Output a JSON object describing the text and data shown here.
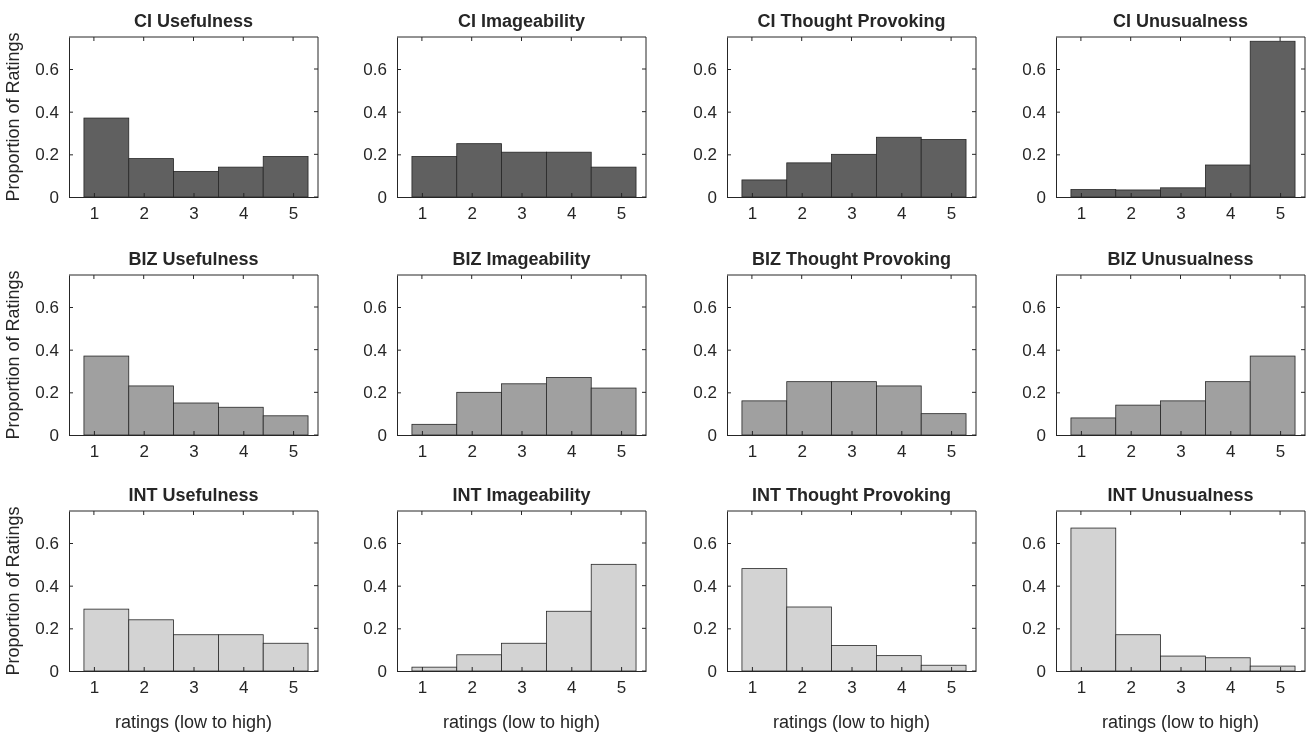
{
  "chart_data": [
    {
      "type": "histogram",
      "title": "CI Usefulness",
      "ylabel": "Proportion of Ratings",
      "bins": [
        0.8,
        1.7,
        2.6,
        3.5,
        4.4,
        5.3
      ],
      "values": [
        0.37,
        0.18,
        0.12,
        0.14,
        0.19
      ],
      "color": "#606060",
      "xlim": [
        0.5,
        5.5
      ],
      "xticks": [
        1,
        2,
        3,
        4,
        5
      ],
      "ylim": [
        0,
        0.75
      ],
      "yticks": [
        0,
        0.2,
        0.4,
        0.6
      ]
    },
    {
      "type": "histogram",
      "title": "CI Imageability",
      "bins": [
        0.8,
        1.7,
        2.6,
        3.5,
        4.4,
        5.3
      ],
      "values": [
        0.19,
        0.25,
        0.21,
        0.21,
        0.14
      ],
      "color": "#606060",
      "xlim": [
        0.5,
        5.5
      ],
      "xticks": [
        1,
        2,
        3,
        4,
        5
      ],
      "ylim": [
        0,
        0.75
      ],
      "yticks": [
        0,
        0.2,
        0.4,
        0.6
      ]
    },
    {
      "type": "histogram",
      "title": "CI Thought Provoking",
      "bins": [
        0.8,
        1.7,
        2.6,
        3.5,
        4.4,
        5.3
      ],
      "values": [
        0.08,
        0.16,
        0.2,
        0.28,
        0.27
      ],
      "color": "#606060",
      "xlim": [
        0.5,
        5.5
      ],
      "xticks": [
        1,
        2,
        3,
        4,
        5
      ],
      "ylim": [
        0,
        0.75
      ],
      "yticks": [
        0,
        0.2,
        0.4,
        0.6
      ]
    },
    {
      "type": "histogram",
      "title": "CI Unusualness",
      "bins": [
        0.8,
        1.7,
        2.6,
        3.5,
        4.4,
        5.3
      ],
      "values": [
        0.035,
        0.033,
        0.043,
        0.15,
        0.73
      ],
      "color": "#606060",
      "xlim": [
        0.5,
        5.5
      ],
      "xticks": [
        1,
        2,
        3,
        4,
        5
      ],
      "ylim": [
        0,
        0.75
      ],
      "yticks": [
        0,
        0.2,
        0.4,
        0.6
      ]
    },
    {
      "type": "histogram",
      "title": "BIZ Usefulness",
      "ylabel": "Proportion of Ratings",
      "bins": [
        0.8,
        1.7,
        2.6,
        3.5,
        4.4,
        5.3
      ],
      "values": [
        0.37,
        0.23,
        0.15,
        0.13,
        0.09
      ],
      "color": "#a0a0a0",
      "xlim": [
        0.5,
        5.5
      ],
      "xticks": [
        1,
        2,
        3,
        4,
        5
      ],
      "ylim": [
        0,
        0.75
      ],
      "yticks": [
        0,
        0.2,
        0.4,
        0.6
      ]
    },
    {
      "type": "histogram",
      "title": "BIZ Imageability",
      "bins": [
        0.8,
        1.7,
        2.6,
        3.5,
        4.4,
        5.3
      ],
      "values": [
        0.05,
        0.2,
        0.24,
        0.27,
        0.22
      ],
      "color": "#a0a0a0",
      "xlim": [
        0.5,
        5.5
      ],
      "xticks": [
        1,
        2,
        3,
        4,
        5
      ],
      "ylim": [
        0,
        0.75
      ],
      "yticks": [
        0,
        0.2,
        0.4,
        0.6
      ]
    },
    {
      "type": "histogram",
      "title": "BIZ Thought Provoking",
      "bins": [
        0.8,
        1.7,
        2.6,
        3.5,
        4.4,
        5.3
      ],
      "values": [
        0.16,
        0.25,
        0.25,
        0.23,
        0.1
      ],
      "color": "#a0a0a0",
      "xlim": [
        0.5,
        5.5
      ],
      "xticks": [
        1,
        2,
        3,
        4,
        5
      ],
      "ylim": [
        0,
        0.75
      ],
      "yticks": [
        0,
        0.2,
        0.4,
        0.6
      ]
    },
    {
      "type": "histogram",
      "title": "BIZ Unusualness",
      "bins": [
        0.8,
        1.7,
        2.6,
        3.5,
        4.4,
        5.3
      ],
      "values": [
        0.08,
        0.14,
        0.16,
        0.25,
        0.37
      ],
      "color": "#a0a0a0",
      "xlim": [
        0.5,
        5.5
      ],
      "xticks": [
        1,
        2,
        3,
        4,
        5
      ],
      "ylim": [
        0,
        0.75
      ],
      "yticks": [
        0,
        0.2,
        0.4,
        0.6
      ]
    },
    {
      "type": "histogram",
      "title": "INT Usefulness",
      "xlabel": "ratings (low to high)",
      "ylabel": "Proportion of Ratings",
      "bins": [
        0.8,
        1.7,
        2.6,
        3.5,
        4.4,
        5.3
      ],
      "values": [
        0.29,
        0.24,
        0.17,
        0.17,
        0.13
      ],
      "color": "#d3d3d3",
      "xlim": [
        0.5,
        5.5
      ],
      "xticks": [
        1,
        2,
        3,
        4,
        5
      ],
      "ylim": [
        0,
        0.75
      ],
      "yticks": [
        0,
        0.2,
        0.4,
        0.6
      ]
    },
    {
      "type": "histogram",
      "title": "INT Imageability",
      "xlabel": "ratings (low to high)",
      "bins": [
        0.8,
        1.7,
        2.6,
        3.5,
        4.4,
        5.3
      ],
      "values": [
        0.018,
        0.076,
        0.13,
        0.28,
        0.5
      ],
      "color": "#d3d3d3",
      "xlim": [
        0.5,
        5.5
      ],
      "xticks": [
        1,
        2,
        3,
        4,
        5
      ],
      "ylim": [
        0,
        0.75
      ],
      "yticks": [
        0,
        0.2,
        0.4,
        0.6
      ]
    },
    {
      "type": "histogram",
      "title": "INT Thought Provoking",
      "xlabel": "ratings (low to high)",
      "bins": [
        0.8,
        1.7,
        2.6,
        3.5,
        4.4,
        5.3
      ],
      "values": [
        0.48,
        0.3,
        0.12,
        0.072,
        0.027
      ],
      "color": "#d3d3d3",
      "xlim": [
        0.5,
        5.5
      ],
      "xticks": [
        1,
        2,
        3,
        4,
        5
      ],
      "ylim": [
        0,
        0.75
      ],
      "yticks": [
        0,
        0.2,
        0.4,
        0.6
      ]
    },
    {
      "type": "histogram",
      "title": "INT Unusualness",
      "xlabel": "ratings (low to high)",
      "bins": [
        0.8,
        1.7,
        2.6,
        3.5,
        4.4,
        5.3
      ],
      "values": [
        0.67,
        0.17,
        0.07,
        0.062,
        0.023
      ],
      "color": "#d3d3d3",
      "xlim": [
        0.5,
        5.5
      ],
      "xticks": [
        1,
        2,
        3,
        4,
        5
      ],
      "ylim": [
        0,
        0.75
      ],
      "yticks": [
        0,
        0.2,
        0.4,
        0.6
      ]
    }
  ]
}
